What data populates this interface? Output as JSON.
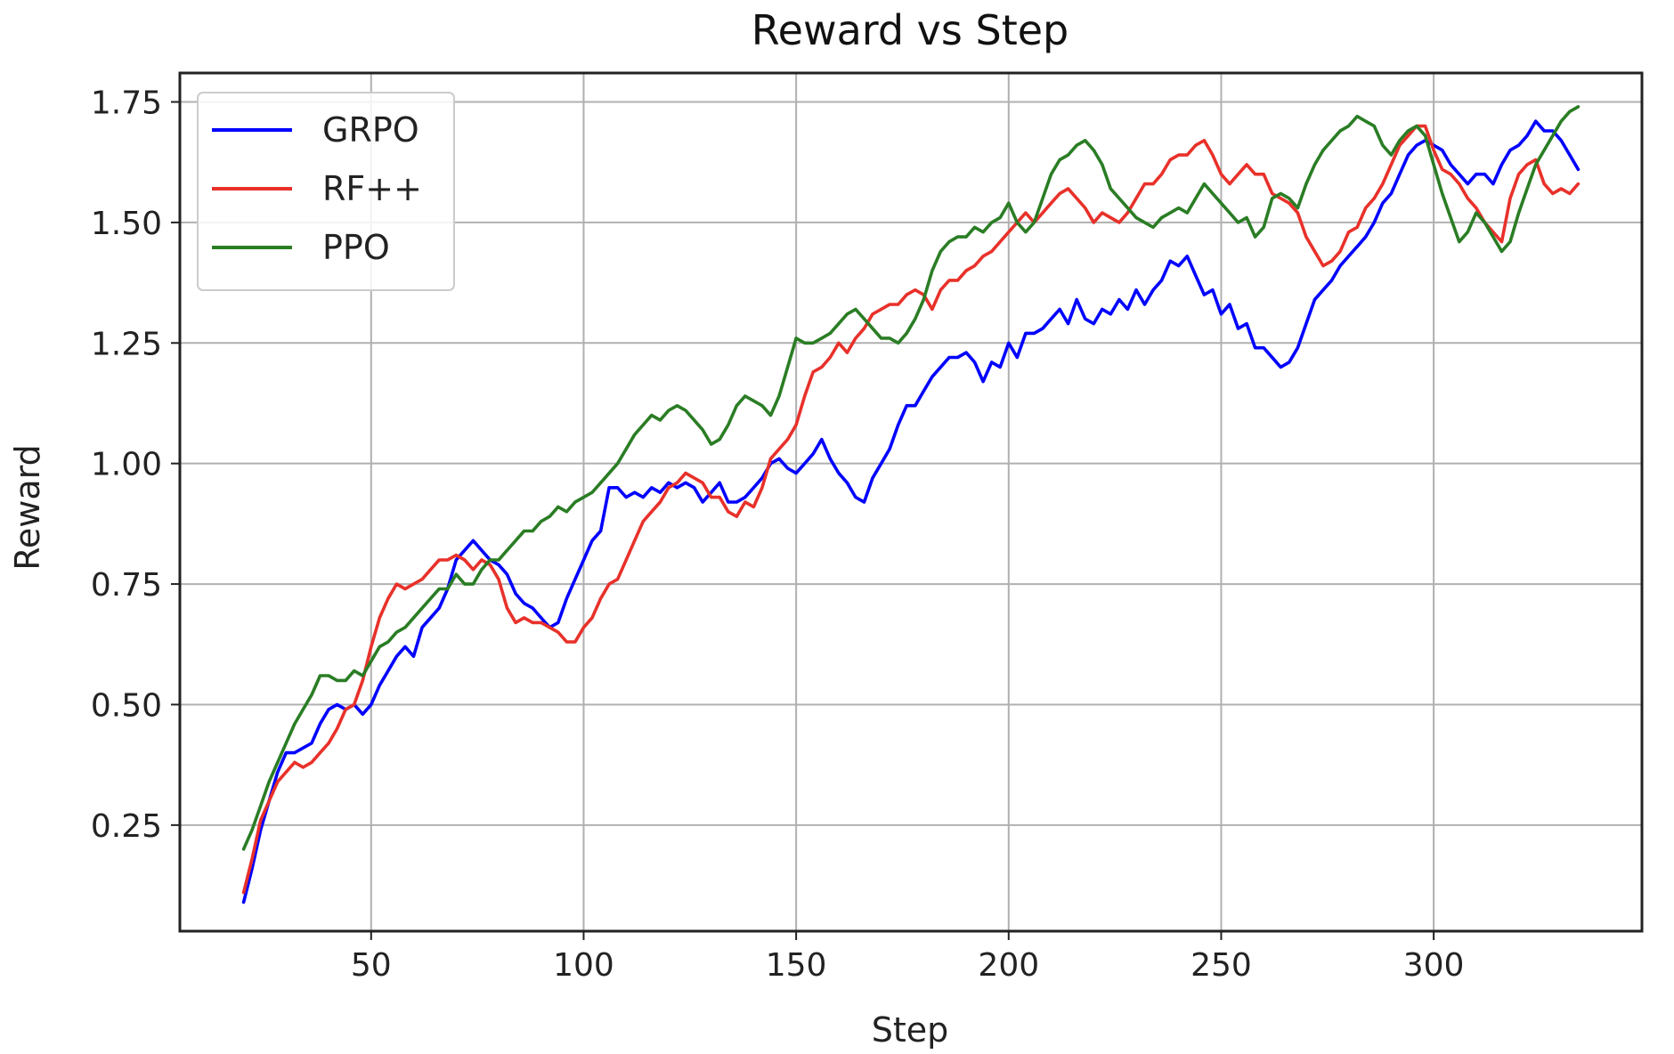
{
  "chart_data": {
    "type": "line",
    "title": "Reward vs Step",
    "xlabel": "Step",
    "ylabel": "Reward",
    "xlim": [
      5,
      349
    ],
    "ylim": [
      0.03,
      1.81
    ],
    "xticks": [
      50,
      100,
      150,
      200,
      250,
      300
    ],
    "xtick_labels": [
      "50",
      "100",
      "150",
      "200",
      "250",
      "300"
    ],
    "yticks": [
      0.25,
      0.5,
      0.75,
      1.0,
      1.25,
      1.5,
      1.75
    ],
    "ytick_labels": [
      "0.25",
      "0.50",
      "0.75",
      "1.00",
      "1.25",
      "1.50",
      "1.75"
    ],
    "grid": true,
    "legend_position": "top-left",
    "series": [
      {
        "name": "GRPO",
        "color": "#0000ff",
        "x": [
          20,
          22,
          24,
          26,
          28,
          30,
          32,
          34,
          36,
          38,
          40,
          42,
          44,
          46,
          48,
          50,
          52,
          54,
          56,
          58,
          60,
          62,
          64,
          66,
          68,
          70,
          72,
          74,
          76,
          78,
          80,
          82,
          84,
          86,
          88,
          90,
          92,
          94,
          96,
          98,
          100,
          102,
          104,
          106,
          108,
          110,
          112,
          114,
          116,
          118,
          120,
          122,
          124,
          126,
          128,
          130,
          132,
          134,
          136,
          138,
          140,
          142,
          144,
          146,
          148,
          150,
          152,
          154,
          156,
          158,
          160,
          162,
          164,
          166,
          168,
          170,
          172,
          174,
          176,
          178,
          180,
          182,
          184,
          186,
          188,
          190,
          192,
          194,
          196,
          198,
          200,
          202,
          204,
          206,
          208,
          210,
          212,
          214,
          216,
          218,
          220,
          222,
          224,
          226,
          228,
          230,
          232,
          234,
          236,
          238,
          240,
          242,
          244,
          246,
          248,
          250,
          252,
          254,
          256,
          258,
          260,
          262,
          264,
          266,
          268,
          270,
          272,
          274,
          276,
          278,
          280,
          282,
          284,
          286,
          288,
          290,
          292,
          294,
          296,
          298,
          300,
          302,
          304,
          306,
          308,
          310,
          312,
          314,
          316,
          318,
          320,
          322,
          324,
          326,
          328,
          330,
          332,
          334
        ],
        "y": [
          0.09,
          0.16,
          0.24,
          0.3,
          0.36,
          0.4,
          0.4,
          0.41,
          0.42,
          0.46,
          0.49,
          0.5,
          0.49,
          0.5,
          0.48,
          0.5,
          0.54,
          0.57,
          0.6,
          0.62,
          0.6,
          0.66,
          0.68,
          0.7,
          0.74,
          0.8,
          0.82,
          0.84,
          0.82,
          0.8,
          0.79,
          0.77,
          0.73,
          0.71,
          0.7,
          0.68,
          0.66,
          0.67,
          0.72,
          0.76,
          0.8,
          0.84,
          0.86,
          0.95,
          0.95,
          0.93,
          0.94,
          0.93,
          0.95,
          0.94,
          0.96,
          0.95,
          0.96,
          0.95,
          0.92,
          0.94,
          0.96,
          0.92,
          0.92,
          0.93,
          0.95,
          0.97,
          1.0,
          1.01,
          0.99,
          0.98,
          1.0,
          1.02,
          1.05,
          1.01,
          0.98,
          0.96,
          0.93,
          0.92,
          0.97,
          1.0,
          1.03,
          1.08,
          1.12,
          1.12,
          1.15,
          1.18,
          1.2,
          1.22,
          1.22,
          1.23,
          1.21,
          1.17,
          1.21,
          1.2,
          1.25,
          1.22,
          1.27,
          1.27,
          1.28,
          1.3,
          1.32,
          1.29,
          1.34,
          1.3,
          1.29,
          1.32,
          1.31,
          1.34,
          1.32,
          1.36,
          1.33,
          1.36,
          1.38,
          1.42,
          1.41,
          1.43,
          1.39,
          1.35,
          1.36,
          1.31,
          1.33,
          1.28,
          1.29,
          1.24,
          1.24,
          1.22,
          1.2,
          1.21,
          1.24,
          1.29,
          1.34,
          1.36,
          1.38,
          1.41,
          1.43,
          1.45,
          1.47,
          1.5,
          1.54,
          1.56,
          1.6,
          1.64,
          1.66,
          1.67,
          1.66,
          1.65,
          1.62,
          1.6,
          1.58,
          1.6,
          1.6,
          1.58,
          1.62,
          1.65,
          1.66,
          1.68,
          1.71,
          1.69,
          1.69,
          1.67,
          1.64,
          1.61
        ]
      },
      {
        "name": "RF++",
        "color": "#e8312a",
        "x": [
          20,
          22,
          24,
          26,
          28,
          30,
          32,
          34,
          36,
          38,
          40,
          42,
          44,
          46,
          48,
          50,
          52,
          54,
          56,
          58,
          60,
          62,
          64,
          66,
          68,
          70,
          72,
          74,
          76,
          78,
          80,
          82,
          84,
          86,
          88,
          90,
          92,
          94,
          96,
          98,
          100,
          102,
          104,
          106,
          108,
          110,
          112,
          114,
          116,
          118,
          120,
          122,
          124,
          126,
          128,
          130,
          132,
          134,
          136,
          138,
          140,
          142,
          144,
          146,
          148,
          150,
          152,
          154,
          156,
          158,
          160,
          162,
          164,
          166,
          168,
          170,
          172,
          174,
          176,
          178,
          180,
          182,
          184,
          186,
          188,
          190,
          192,
          194,
          196,
          198,
          200,
          202,
          204,
          206,
          208,
          210,
          212,
          214,
          216,
          218,
          220,
          222,
          224,
          226,
          228,
          230,
          232,
          234,
          236,
          238,
          240,
          242,
          244,
          246,
          248,
          250,
          252,
          254,
          256,
          258,
          260,
          262,
          264,
          266,
          268,
          270,
          272,
          274,
          276,
          278,
          280,
          282,
          284,
          286,
          288,
          290,
          292,
          294,
          296,
          298,
          300,
          302,
          304,
          306,
          308,
          310,
          312,
          314,
          316,
          318,
          320,
          322,
          324,
          326,
          328,
          330,
          332,
          334
        ],
        "y": [
          0.11,
          0.18,
          0.26,
          0.3,
          0.34,
          0.36,
          0.38,
          0.37,
          0.38,
          0.4,
          0.42,
          0.45,
          0.49,
          0.5,
          0.55,
          0.62,
          0.68,
          0.72,
          0.75,
          0.74,
          0.75,
          0.76,
          0.78,
          0.8,
          0.8,
          0.81,
          0.8,
          0.78,
          0.8,
          0.79,
          0.76,
          0.7,
          0.67,
          0.68,
          0.67,
          0.67,
          0.66,
          0.65,
          0.63,
          0.63,
          0.66,
          0.68,
          0.72,
          0.75,
          0.76,
          0.8,
          0.84,
          0.88,
          0.9,
          0.92,
          0.95,
          0.96,
          0.98,
          0.97,
          0.96,
          0.93,
          0.93,
          0.9,
          0.89,
          0.92,
          0.91,
          0.95,
          1.01,
          1.03,
          1.05,
          1.08,
          1.14,
          1.19,
          1.2,
          1.22,
          1.25,
          1.23,
          1.26,
          1.28,
          1.31,
          1.32,
          1.33,
          1.33,
          1.35,
          1.36,
          1.35,
          1.32,
          1.36,
          1.38,
          1.38,
          1.4,
          1.41,
          1.43,
          1.44,
          1.46,
          1.48,
          1.5,
          1.52,
          1.5,
          1.52,
          1.54,
          1.56,
          1.57,
          1.55,
          1.53,
          1.5,
          1.52,
          1.51,
          1.5,
          1.52,
          1.55,
          1.58,
          1.58,
          1.6,
          1.63,
          1.64,
          1.64,
          1.66,
          1.67,
          1.64,
          1.6,
          1.58,
          1.6,
          1.62,
          1.6,
          1.6,
          1.56,
          1.55,
          1.54,
          1.52,
          1.47,
          1.44,
          1.41,
          1.42,
          1.44,
          1.48,
          1.49,
          1.53,
          1.55,
          1.58,
          1.62,
          1.66,
          1.68,
          1.7,
          1.7,
          1.65,
          1.61,
          1.6,
          1.58,
          1.55,
          1.53,
          1.5,
          1.48,
          1.46,
          1.55,
          1.6,
          1.62,
          1.63,
          1.58,
          1.56,
          1.57,
          1.56,
          1.58
        ]
      },
      {
        "name": "PPO",
        "color": "#2a7d24",
        "x": [
          20,
          22,
          24,
          26,
          28,
          30,
          32,
          34,
          36,
          38,
          40,
          42,
          44,
          46,
          48,
          50,
          52,
          54,
          56,
          58,
          60,
          62,
          64,
          66,
          68,
          70,
          72,
          74,
          76,
          78,
          80,
          82,
          84,
          86,
          88,
          90,
          92,
          94,
          96,
          98,
          100,
          102,
          104,
          106,
          108,
          110,
          112,
          114,
          116,
          118,
          120,
          122,
          124,
          126,
          128,
          130,
          132,
          134,
          136,
          138,
          140,
          142,
          144,
          146,
          148,
          150,
          152,
          154,
          156,
          158,
          160,
          162,
          164,
          166,
          168,
          170,
          172,
          174,
          176,
          178,
          180,
          182,
          184,
          186,
          188,
          190,
          192,
          194,
          196,
          198,
          200,
          202,
          204,
          206,
          208,
          210,
          212,
          214,
          216,
          218,
          220,
          222,
          224,
          226,
          228,
          230,
          232,
          234,
          236,
          238,
          240,
          242,
          244,
          246,
          248,
          250,
          252,
          254,
          256,
          258,
          260,
          262,
          264,
          266,
          268,
          270,
          272,
          274,
          276,
          278,
          280,
          282,
          284,
          286,
          288,
          290,
          292,
          294,
          296,
          298,
          300,
          302,
          304,
          306,
          308,
          310,
          312,
          314,
          316,
          318,
          320,
          322,
          324,
          326,
          328,
          330,
          332,
          334
        ],
        "y": [
          0.2,
          0.24,
          0.29,
          0.34,
          0.38,
          0.42,
          0.46,
          0.49,
          0.52,
          0.56,
          0.56,
          0.55,
          0.55,
          0.57,
          0.56,
          0.59,
          0.62,
          0.63,
          0.65,
          0.66,
          0.68,
          0.7,
          0.72,
          0.74,
          0.74,
          0.77,
          0.75,
          0.75,
          0.78,
          0.8,
          0.8,
          0.82,
          0.84,
          0.86,
          0.86,
          0.88,
          0.89,
          0.91,
          0.9,
          0.92,
          0.93,
          0.94,
          0.96,
          0.98,
          1.0,
          1.03,
          1.06,
          1.08,
          1.1,
          1.09,
          1.11,
          1.12,
          1.11,
          1.09,
          1.07,
          1.04,
          1.05,
          1.08,
          1.12,
          1.14,
          1.13,
          1.12,
          1.1,
          1.14,
          1.2,
          1.26,
          1.25,
          1.25,
          1.26,
          1.27,
          1.29,
          1.31,
          1.32,
          1.3,
          1.28,
          1.26,
          1.26,
          1.25,
          1.27,
          1.3,
          1.34,
          1.4,
          1.44,
          1.46,
          1.47,
          1.47,
          1.49,
          1.48,
          1.5,
          1.51,
          1.54,
          1.5,
          1.48,
          1.5,
          1.55,
          1.6,
          1.63,
          1.64,
          1.66,
          1.67,
          1.65,
          1.62,
          1.57,
          1.55,
          1.53,
          1.51,
          1.5,
          1.49,
          1.51,
          1.52,
          1.53,
          1.52,
          1.55,
          1.58,
          1.56,
          1.54,
          1.52,
          1.5,
          1.51,
          1.47,
          1.49,
          1.55,
          1.56,
          1.55,
          1.53,
          1.58,
          1.62,
          1.65,
          1.67,
          1.69,
          1.7,
          1.72,
          1.71,
          1.7,
          1.66,
          1.64,
          1.67,
          1.69,
          1.7,
          1.68,
          1.62,
          1.56,
          1.51,
          1.46,
          1.48,
          1.52,
          1.5,
          1.47,
          1.44,
          1.46,
          1.52,
          1.57,
          1.62,
          1.65,
          1.68,
          1.71,
          1.73,
          1.74
        ]
      }
    ]
  }
}
